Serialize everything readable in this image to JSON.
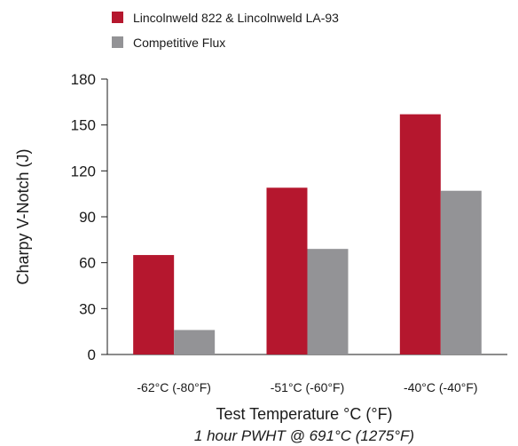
{
  "chart_data": {
    "type": "bar",
    "categories": [
      "-62°C (-80°F)",
      "-51°C (-60°F)",
      "-40°C (-40°F)"
    ],
    "series": [
      {
        "name": "Lincolnweld 822 & Lincolnweld LA-93",
        "values": [
          65,
          109,
          157
        ],
        "color": "#b5172e"
      },
      {
        "name": "Competitive Flux",
        "values": [
          16,
          69,
          107
        ],
        "color": "#939396"
      }
    ],
    "xlabel": "Test Temperature °C (°F)",
    "subtitle": "1 hour PWHT @ 691°C (1275°F)",
    "ylabel": "Charpy V-Notch (J)",
    "ylim": [
      0,
      180
    ],
    "yticks": [
      0,
      30,
      60,
      90,
      120,
      150,
      180
    ],
    "grid": false,
    "legend_position": "top-left"
  }
}
